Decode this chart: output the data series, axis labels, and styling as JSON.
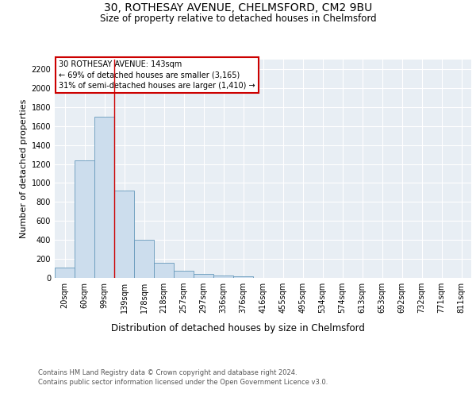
{
  "title1": "30, ROTHESAY AVENUE, CHELMSFORD, CM2 9BU",
  "title2": "Size of property relative to detached houses in Chelmsford",
  "xlabel": "Distribution of detached houses by size in Chelmsford",
  "ylabel": "Number of detached properties",
  "categories": [
    "20sqm",
    "60sqm",
    "99sqm",
    "139sqm",
    "178sqm",
    "218sqm",
    "257sqm",
    "297sqm",
    "336sqm",
    "376sqm",
    "416sqm",
    "455sqm",
    "495sqm",
    "534sqm",
    "574sqm",
    "613sqm",
    "653sqm",
    "692sqm",
    "732sqm",
    "771sqm",
    "811sqm"
  ],
  "values": [
    110,
    1240,
    1700,
    920,
    400,
    155,
    75,
    40,
    25,
    20,
    0,
    0,
    0,
    0,
    0,
    0,
    0,
    0,
    0,
    0,
    0
  ],
  "bar_color": "#ccdded",
  "bar_edge_color": "#6699bb",
  "annotation_line1": "30 ROTHESAY AVENUE: 143sqm",
  "annotation_line2": "← 69% of detached houses are smaller (3,165)",
  "annotation_line3": "31% of semi-detached houses are larger (1,410) →",
  "annotation_bg": "#ffffff",
  "annotation_border": "#cc0000",
  "vline_color": "#cc0000",
  "vline_x": 2.5,
  "ylim": [
    0,
    2300
  ],
  "yticks": [
    0,
    200,
    400,
    600,
    800,
    1000,
    1200,
    1400,
    1600,
    1800,
    2000,
    2200
  ],
  "bg_color": "#e8eef4",
  "grid_color": "#ffffff",
  "footer1": "Contains HM Land Registry data © Crown copyright and database right 2024.",
  "footer2": "Contains public sector information licensed under the Open Government Licence v3.0."
}
